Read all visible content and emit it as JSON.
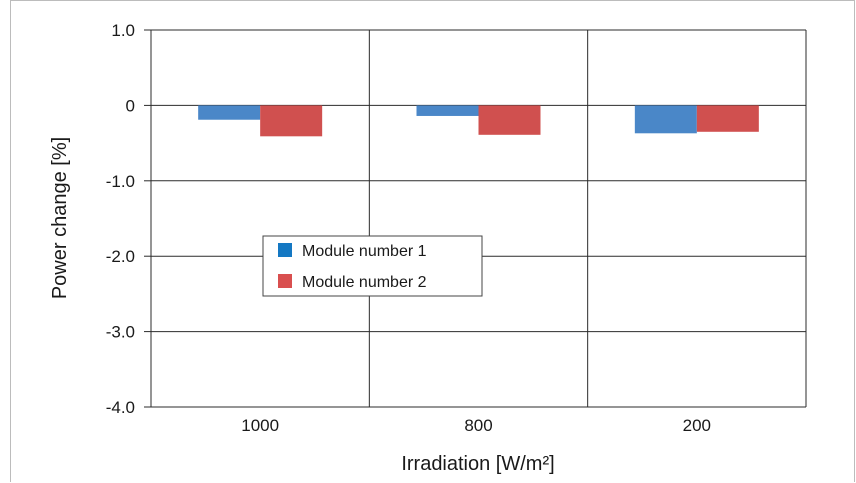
{
  "chart_data": {
    "type": "bar",
    "xlabel": "Irradiation [W/m²]",
    "ylabel": "Power change [%]",
    "categories": [
      "1000",
      "800",
      "200"
    ],
    "ylim": [
      -4.0,
      1.0
    ],
    "yticks": [
      "1.0",
      "0",
      "-1.0",
      "-2.0",
      "-3.0",
      "-4.0"
    ],
    "ytick_values": [
      1.0,
      0,
      -1.0,
      -2.0,
      -3.0,
      -4.0
    ],
    "grid": true,
    "legend_position": "center-left",
    "series": [
      {
        "name": "Module number 1",
        "color": "#4a87c8",
        "values": [
          -0.19,
          -0.14,
          -0.37
        ]
      },
      {
        "name": "Module number 2",
        "color": "#d0504f",
        "values": [
          -0.41,
          -0.39,
          -0.35
        ]
      }
    ],
    "legend_swatch_colors": [
      "#1478c3",
      "#d94f4f"
    ]
  }
}
